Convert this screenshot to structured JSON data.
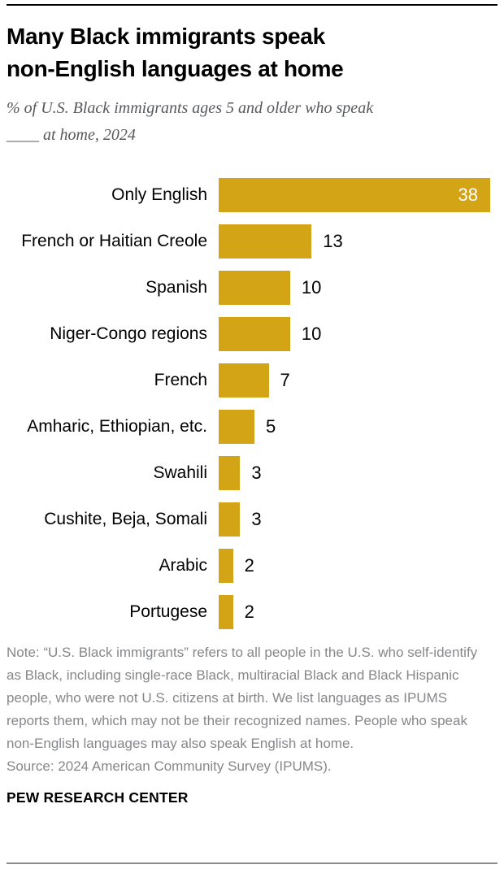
{
  "header": {
    "title_lines": {
      "line1": "Many Black immigrants speak",
      "line2": "non-English languages at home"
    },
    "subtitle_lines": {
      "line1": "% of U.S. Black immigrants ages 5 and older who speak",
      "line2": "____ at home, 2024"
    }
  },
  "chart_data": {
    "type": "bar",
    "orientation": "horizontal",
    "title": "Many Black immigrants speak non-English languages at home",
    "subtitle": "% of U.S. Black immigrants ages 5 and older who speak ____ at home, 2024",
    "categories": [
      "Only English",
      "French or Haitian Creole",
      "Spanish",
      "Niger-Congo regions",
      "French",
      "Amharic, Ethiopian, etc.",
      "Swahili",
      "Cushite, Beja, Somali",
      "Arabic",
      "Portugese"
    ],
    "values": [
      38,
      13,
      10,
      10,
      7,
      5,
      3,
      3,
      2,
      2
    ],
    "xlim": [
      0,
      38
    ],
    "bar_color": "#D4A417",
    "value_label_color_inside": "#ffffff",
    "value_label_color_outside": "#000000",
    "first_value_inside_bar": true,
    "grid": "off",
    "axis_ticks": "none"
  },
  "footer": {
    "note": "Note: “U.S. Black immigrants” refers to all people in the U.S. who self-identify as Black, including single-race Black, multiracial Black and Black Hispanic people, who were not U.S. citizens at birth. We list languages as IPUMS reports them, which may not be their recognized names. People who speak non-English languages may also speak English at home.",
    "source": "Source: 2024 American Community Survey (IPUMS).",
    "branding": "PEW RESEARCH CENTER"
  }
}
